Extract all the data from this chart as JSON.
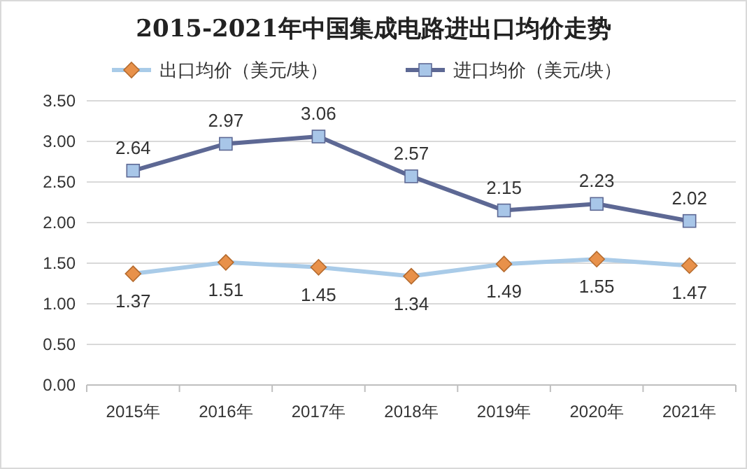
{
  "chart_data": {
    "type": "line",
    "title": "2015-2021年中国集成电路进出口均价走势",
    "categories": [
      "2015年",
      "2016年",
      "2017年",
      "2018年",
      "2019年",
      "2020年",
      "2021年"
    ],
    "series": [
      {
        "name": "出口均价（美元/块）",
        "color": "#a9cbe8",
        "colors": [
          "#e8914a",
          "#e8914a",
          "#e8914a",
          "#e8914a",
          "#e8914a",
          "#e8914a",
          "#e8914a"
        ],
        "marker": "diamond",
        "values": [
          1.37,
          1.51,
          1.45,
          1.34,
          1.49,
          1.55,
          1.47
        ]
      },
      {
        "name": "进口均价（美元/块）",
        "color": "#5d6894",
        "colors": [
          "#a8c6e8",
          "#a8c6e8",
          "#a8c6e8",
          "#a8c6e8",
          "#a8c6e8",
          "#a8c6e8",
          "#a8c6e8"
        ],
        "marker": "square",
        "values": [
          2.64,
          2.97,
          3.06,
          2.57,
          2.15,
          2.23,
          2.02
        ]
      }
    ],
    "ylim": [
      0,
      3.5
    ],
    "yticks": [
      {
        "value": 0,
        "label": "0.00"
      },
      {
        "value": 0.5,
        "label": "0.50"
      },
      {
        "value": 1,
        "label": "1.00"
      },
      {
        "value": 1.5,
        "label": "1.50"
      },
      {
        "value": 2,
        "label": "2.00"
      },
      {
        "value": 2.5,
        "label": "2.50"
      },
      {
        "value": 3,
        "label": "3.00"
      },
      {
        "value": 3.5,
        "label": "3.50"
      }
    ],
    "grid": "y",
    "legend": "top",
    "data_labels": true,
    "line_style": "solid"
  }
}
